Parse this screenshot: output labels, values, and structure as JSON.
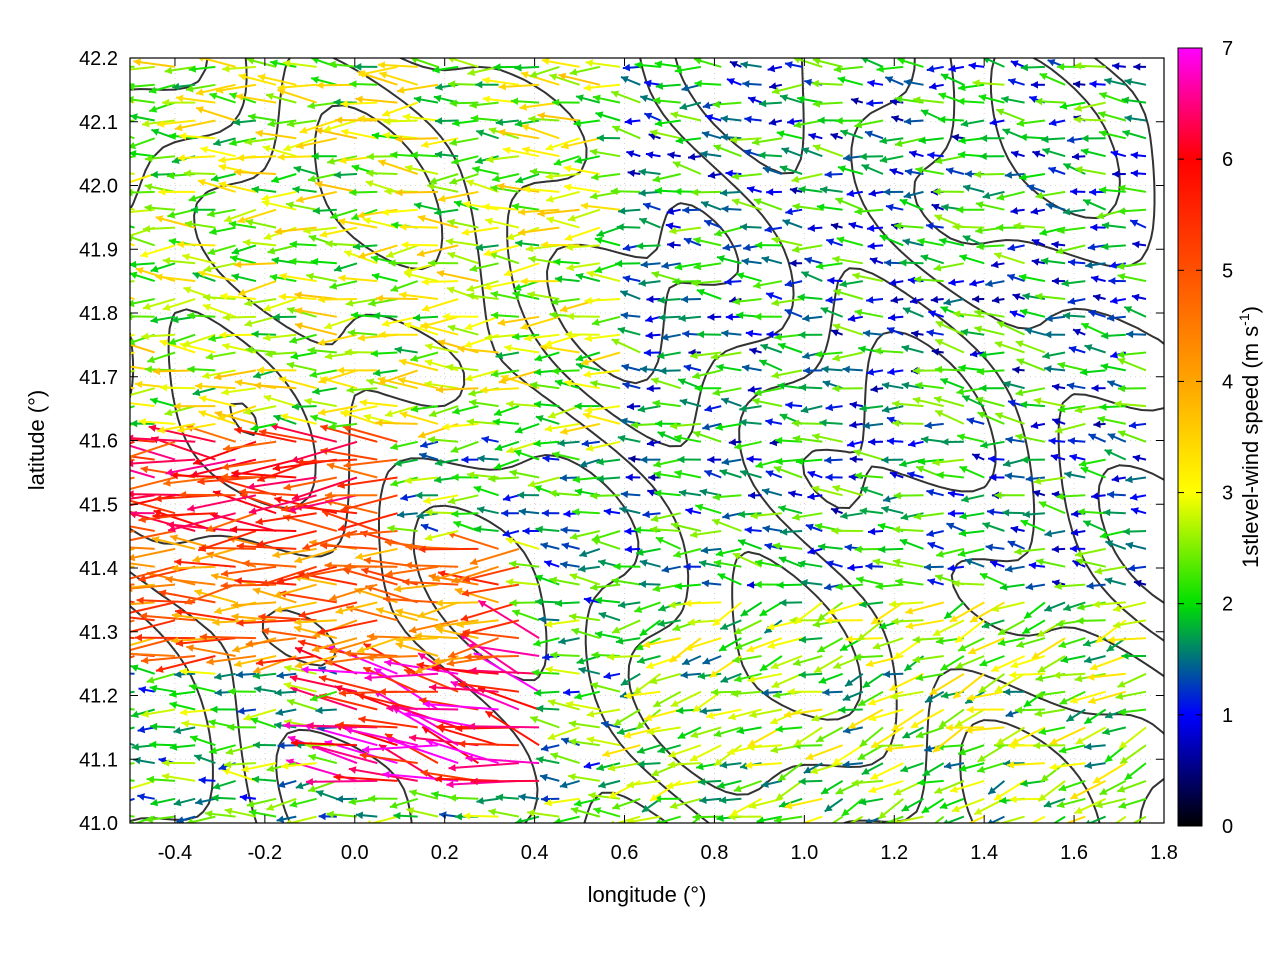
{
  "chart_data": {
    "type": "vector-field",
    "xlabel": "longitude (°)",
    "ylabel": "latitude (°)",
    "colorbar_label": "1stlevel-wind speed (m s",
    "colorbar_label_exp": "-1",
    "colorbar_label_close": ")",
    "xlim": [
      -0.5,
      1.8
    ],
    "ylim": [
      41.0,
      42.2
    ],
    "x_ticks": [
      "-0.4",
      "-0.2",
      "0.0",
      "0.2",
      "0.4",
      "0.6",
      "0.8",
      "1.0",
      "1.2",
      "1.4",
      "1.6",
      "1.8"
    ],
    "x_tick_values": [
      -0.4,
      -0.2,
      0.0,
      0.2,
      0.4,
      0.6,
      0.8,
      1.0,
      1.2,
      1.4,
      1.6,
      1.8
    ],
    "y_ticks": [
      "41.0",
      "41.1",
      "41.2",
      "41.3",
      "41.4",
      "41.5",
      "41.6",
      "41.7",
      "41.8",
      "41.9",
      "42.0",
      "42.1",
      "42.2"
    ],
    "y_tick_values": [
      41.0,
      41.1,
      41.2,
      41.3,
      41.4,
      41.5,
      41.6,
      41.7,
      41.8,
      41.9,
      42.0,
      42.1,
      42.2
    ],
    "colorbar_range": [
      0,
      7
    ],
    "colorbar_ticks": [
      "0",
      "1",
      "2",
      "3",
      "4",
      "5",
      "6",
      "7"
    ],
    "colorbar_tick_values": [
      0,
      1,
      2,
      3,
      4,
      5,
      6,
      7
    ],
    "colormap": [
      {
        "v": 0.0,
        "color": "#000000"
      },
      {
        "v": 1.0,
        "color": "#0000ff"
      },
      {
        "v": 2.0,
        "color": "#00e000"
      },
      {
        "v": 3.0,
        "color": "#ffff00"
      },
      {
        "v": 4.0,
        "color": "#ffa500"
      },
      {
        "v": 5.0,
        "color": "#ff5000"
      },
      {
        "v": 6.0,
        "color": "#ff0000"
      },
      {
        "v": 7.0,
        "color": "#ff00ff"
      }
    ],
    "grid": true,
    "contour_color": "#333333",
    "vector_regions": [
      {
        "x": [
          -0.5,
          0.1
        ],
        "y": [
          41.45,
          41.62
        ],
        "speed": 5.6,
        "dir_deg": 180
      },
      {
        "x": [
          -0.5,
          0.4
        ],
        "y": [
          41.25,
          41.45
        ],
        "speed": 4.6,
        "dir_deg": 182
      },
      {
        "x": [
          0.0,
          0.45
        ],
        "y": [
          41.05,
          41.3
        ],
        "speed": 6.2,
        "dir_deg": 165
      },
      {
        "x": [
          -0.5,
          0.6
        ],
        "y": [
          41.62,
          42.2
        ],
        "speed": 2.7,
        "dir_deg": 180
      },
      {
        "x": [
          0.6,
          1.8
        ],
        "y": [
          41.0,
          41.35
        ],
        "speed": 2.4,
        "dir_deg": 200
      },
      {
        "x": [
          0.6,
          1.8
        ],
        "y": [
          41.35,
          42.2
        ],
        "speed": 1.6,
        "dir_deg": 175
      }
    ]
  }
}
